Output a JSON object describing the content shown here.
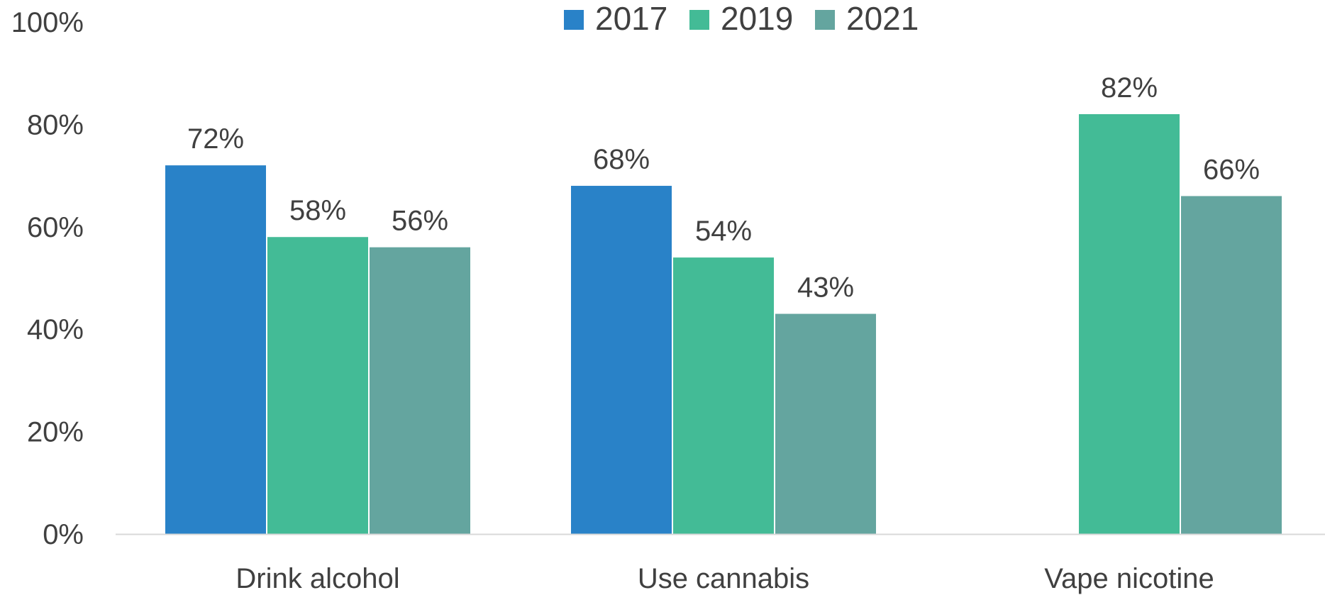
{
  "chart_data": {
    "type": "bar",
    "categories": [
      "Drink alcohol",
      "Use cannabis",
      "Vape nicotine"
    ],
    "series": [
      {
        "name": "2017",
        "color": "#2982C8",
        "values": [
          72,
          68,
          null
        ]
      },
      {
        "name": "2019",
        "color": "#43BB96",
        "values": [
          58,
          54,
          82
        ]
      },
      {
        "name": "2021",
        "color": "#64A59F",
        "values": [
          56,
          43,
          66
        ]
      }
    ],
    "data_labels": [
      [
        "72%",
        "68%",
        ""
      ],
      [
        "58%",
        "54%",
        "82%"
      ],
      [
        "56%",
        "43%",
        "66%"
      ]
    ],
    "y_ticks": [
      "0%",
      "20%",
      "40%",
      "60%",
      "80%",
      "100%"
    ],
    "ylim": [
      0,
      100
    ],
    "legend": "top-center",
    "grid": false,
    "axis_color": "#D9D9D9",
    "text_color": "#404040"
  }
}
